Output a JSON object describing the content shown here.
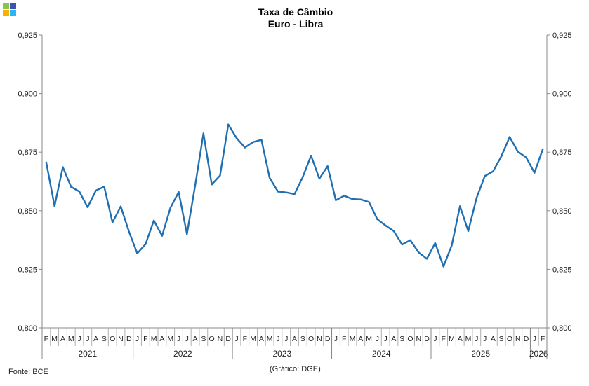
{
  "brand": {
    "logo_colors": [
      "#8bc34a",
      "#3f51b5",
      "#f4b400",
      "#29b6f6"
    ]
  },
  "footer": {
    "source": "Fonte: BCE",
    "credit": "(Gráfico: DGE)"
  },
  "chart_data": {
    "type": "line",
    "title": "Taxa de Câmbio",
    "subtitle": "Euro - Libra",
    "xlabel": "",
    "ylabel": "",
    "ylim": [
      0.8,
      0.925
    ],
    "yticks": [
      "0,800",
      "0,825",
      "0,850",
      "0,875",
      "0,900",
      "0,925"
    ],
    "grid": false,
    "line_color": "#1f6fb2",
    "x_months": [
      "F",
      "M",
      "A",
      "M",
      "J",
      "J",
      "A",
      "S",
      "O",
      "N",
      "D",
      "J",
      "F",
      "M",
      "A",
      "M",
      "J",
      "J",
      "A",
      "S",
      "O",
      "N",
      "D",
      "J",
      "F",
      "M",
      "A",
      "M",
      "J",
      "J",
      "A",
      "S",
      "O",
      "N",
      "D",
      "J",
      "F",
      "M",
      "A",
      "M",
      "J",
      "J",
      "A",
      "S",
      "O",
      "N",
      "D",
      "J",
      "F",
      "M",
      "A",
      "M",
      "J",
      "J",
      "A",
      "S",
      "O",
      "N",
      "D",
      "J",
      "F"
    ],
    "years": [
      {
        "label": "2021",
        "start": 0,
        "count": 11
      },
      {
        "label": "2022",
        "start": 11,
        "count": 12
      },
      {
        "label": "2023",
        "start": 23,
        "count": 12
      },
      {
        "label": "2024",
        "start": 35,
        "count": 12
      },
      {
        "label": "2025",
        "start": 47,
        "count": 12
      },
      {
        "label": "2026",
        "start": 59,
        "count": 2
      }
    ],
    "series": [
      {
        "name": "Euro - Libra",
        "values": [
          0.8706,
          0.852,
          0.8686,
          0.8602,
          0.8582,
          0.8515,
          0.8586,
          0.8603,
          0.845,
          0.8518,
          0.841,
          0.8318,
          0.8357,
          0.8458,
          0.8393,
          0.8512,
          0.858,
          0.84,
          0.861,
          0.883,
          0.8612,
          0.865,
          0.8868,
          0.881,
          0.877,
          0.8793,
          0.8803,
          0.864,
          0.8582,
          0.8578,
          0.8571,
          0.8644,
          0.8735,
          0.8637,
          0.869,
          0.8545,
          0.8564,
          0.855,
          0.8548,
          0.8537,
          0.8464,
          0.8437,
          0.8413,
          0.8356,
          0.8374,
          0.8322,
          0.8295,
          0.8362,
          0.8262,
          0.8352,
          0.8519,
          0.8413,
          0.8554,
          0.8648,
          0.8668,
          0.8733,
          0.8815,
          0.8752,
          0.8728,
          0.8662,
          0.8762
        ]
      }
    ]
  }
}
